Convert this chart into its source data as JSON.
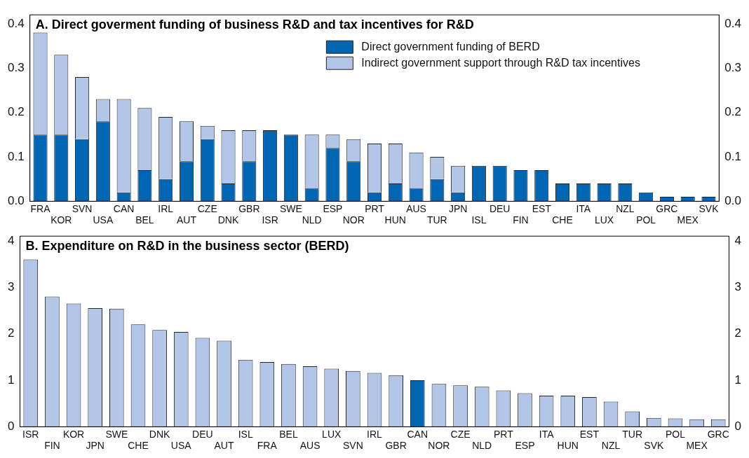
{
  "chart_data": [
    {
      "type": "bar",
      "title": "A. Direct goverment funding of business R&D and tax incentives for R&D",
      "categories": [
        "FRA",
        "KOR",
        "SVN",
        "USA",
        "CAN",
        "BEL",
        "IRL",
        "AUT",
        "CZE",
        "DNK",
        "GBR",
        "ISR",
        "SWE",
        "NLD",
        "ESP",
        "NOR",
        "PRT",
        "HUN",
        "AUS",
        "TUR",
        "JPN",
        "ISL",
        "DEU",
        "FIN",
        "EST",
        "CHE",
        "ITA",
        "LUX",
        "NZL",
        "POL",
        "GRC",
        "MEX",
        "SVK"
      ],
      "stacked": true,
      "series": [
        {
          "name": "Direct government funding of BERD",
          "color": "#0066b3",
          "values": [
            0.15,
            0.15,
            0.14,
            0.18,
            0.02,
            0.07,
            0.05,
            0.09,
            0.14,
            0.04,
            0.09,
            0.16,
            0.15,
            0.03,
            0.12,
            0.09,
            0.02,
            0.04,
            0.03,
            0.05,
            0.02,
            0.08,
            0.08,
            0.07,
            0.07,
            0.04,
            0.04,
            0.04,
            0.04,
            0.02,
            0.01,
            0.01,
            0.01
          ]
        },
        {
          "name": "Indirect government support through R&D tax incentives",
          "color": "#b4c6e7",
          "values": [
            0.23,
            0.18,
            0.14,
            0.05,
            0.21,
            0.14,
            0.14,
            0.09,
            0.03,
            0.12,
            0.07,
            0,
            0,
            0.12,
            0.03,
            0.05,
            0.11,
            0.09,
            0.08,
            0.05,
            0.06,
            0,
            0,
            0,
            0,
            0,
            0,
            0,
            0,
            0,
            0,
            0,
            0
          ]
        }
      ],
      "ylim": [
        0,
        0.42
      ],
      "yticks": [
        {
          "value": 0,
          "label": "0.0"
        },
        0.1,
        0.2,
        0.3,
        0.4
      ],
      "y2lim": [
        0,
        0.42
      ],
      "y2ticks": [
        {
          "value": 0,
          "label": "0.0"
        },
        0.1,
        0.2,
        0.3,
        0.4
      ],
      "legend": "top right",
      "grid": false
    },
    {
      "type": "bar",
      "title": "B. Expenditure on R&D in the business sector (BERD)",
      "categories": [
        "ISR",
        "FIN",
        "KOR",
        "JPN",
        "SWE",
        "CHE",
        "DNK",
        "USA",
        "DEU",
        "AUT",
        "ISL",
        "FRA",
        "BEL",
        "AUS",
        "LUX",
        "SVN",
        "IRL",
        "GBR",
        "CAN",
        "NOR",
        "CZE",
        "NLD",
        "PRT",
        "ESP",
        "ITA",
        "HUN",
        "EST",
        "NZL",
        "TUR",
        "SVK",
        "POL",
        "MEX",
        "GRC"
      ],
      "values": [
        3.6,
        2.8,
        2.65,
        2.55,
        2.54,
        2.2,
        2.08,
        2.04,
        1.91,
        1.85,
        1.44,
        1.39,
        1.35,
        1.3,
        1.25,
        1.2,
        1.16,
        1.11,
        1.0,
        0.92,
        0.89,
        0.86,
        0.78,
        0.72,
        0.67,
        0.67,
        0.64,
        0.54,
        0.33,
        0.19,
        0.18,
        0.16,
        0.16
      ],
      "colors": [
        "#b4c6e7",
        "#b4c6e7",
        "#b4c6e7",
        "#b4c6e7",
        "#b4c6e7",
        "#b4c6e7",
        "#b4c6e7",
        "#b4c6e7",
        "#b4c6e7",
        "#b4c6e7",
        "#b4c6e7",
        "#b4c6e7",
        "#b4c6e7",
        "#b4c6e7",
        "#b4c6e7",
        "#b4c6e7",
        "#b4c6e7",
        "#b4c6e7",
        "#0066b3",
        "#b4c6e7",
        "#b4c6e7",
        "#b4c6e7",
        "#b4c6e7",
        "#b4c6e7",
        "#b4c6e7",
        "#b4c6e7",
        "#b4c6e7",
        "#b4c6e7",
        "#b4c6e7",
        "#b4c6e7",
        "#b4c6e7",
        "#b4c6e7",
        "#b4c6e7"
      ],
      "ylim": [
        0,
        4.1
      ],
      "yticks": [
        0,
        1,
        2,
        3,
        4
      ],
      "y2lim": [
        0,
        4.1
      ],
      "y2ticks": [
        0,
        1,
        2,
        3,
        4
      ],
      "legend": false,
      "grid": false
    }
  ]
}
